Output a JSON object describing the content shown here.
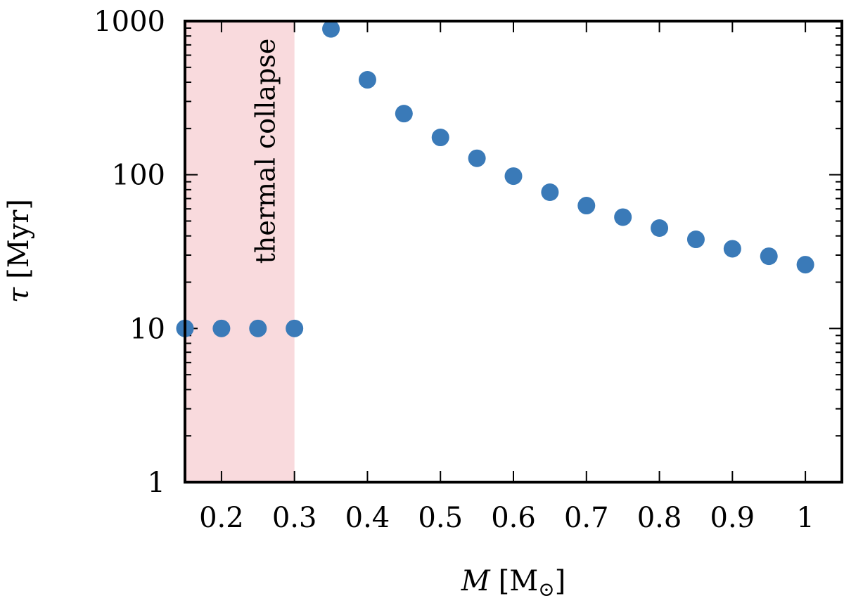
{
  "chart_data": {
    "type": "scatter",
    "title": "",
    "xlabel": {
      "symbol": "M",
      "unit": "[M",
      "unit_sub": "⊙",
      "unit_close": "]"
    },
    "ylabel": {
      "symbol": "τ",
      "unit": "[Myr]"
    },
    "xlim": [
      0.15,
      1.05
    ],
    "ylim": [
      1,
      1000
    ],
    "yscale": "log",
    "grid": false,
    "xticks": [
      0.2,
      0.3,
      0.4,
      0.5,
      0.6,
      0.7,
      0.8,
      0.9,
      1
    ],
    "xtick_labels": [
      "0.2",
      "0.3",
      "0.4",
      "0.5",
      "0.6",
      "0.7",
      "0.8",
      "0.9",
      "1"
    ],
    "yticks": [
      1,
      10,
      100,
      1000
    ],
    "ytick_labels": [
      "1",
      "10",
      "100",
      "1000"
    ],
    "shaded_region": {
      "x_range": [
        0.15,
        0.3
      ],
      "label": "thermal collapse",
      "color": "#f9dadd"
    },
    "series": [
      {
        "color": "#3a7ab8",
        "points": [
          {
            "x": 0.15,
            "y": 10
          },
          {
            "x": 0.2,
            "y": 10
          },
          {
            "x": 0.25,
            "y": 10
          },
          {
            "x": 0.3,
            "y": 10
          },
          {
            "x": 0.35,
            "y": 890
          },
          {
            "x": 0.4,
            "y": 415
          },
          {
            "x": 0.45,
            "y": 250
          },
          {
            "x": 0.5,
            "y": 175
          },
          {
            "x": 0.55,
            "y": 128
          },
          {
            "x": 0.6,
            "y": 98
          },
          {
            "x": 0.65,
            "y": 77
          },
          {
            "x": 0.7,
            "y": 63
          },
          {
            "x": 0.75,
            "y": 53
          },
          {
            "x": 0.8,
            "y": 45
          },
          {
            "x": 0.85,
            "y": 38
          },
          {
            "x": 0.9,
            "y": 33
          },
          {
            "x": 0.95,
            "y": 29.5
          },
          {
            "x": 1.0,
            "y": 26
          }
        ]
      }
    ]
  }
}
